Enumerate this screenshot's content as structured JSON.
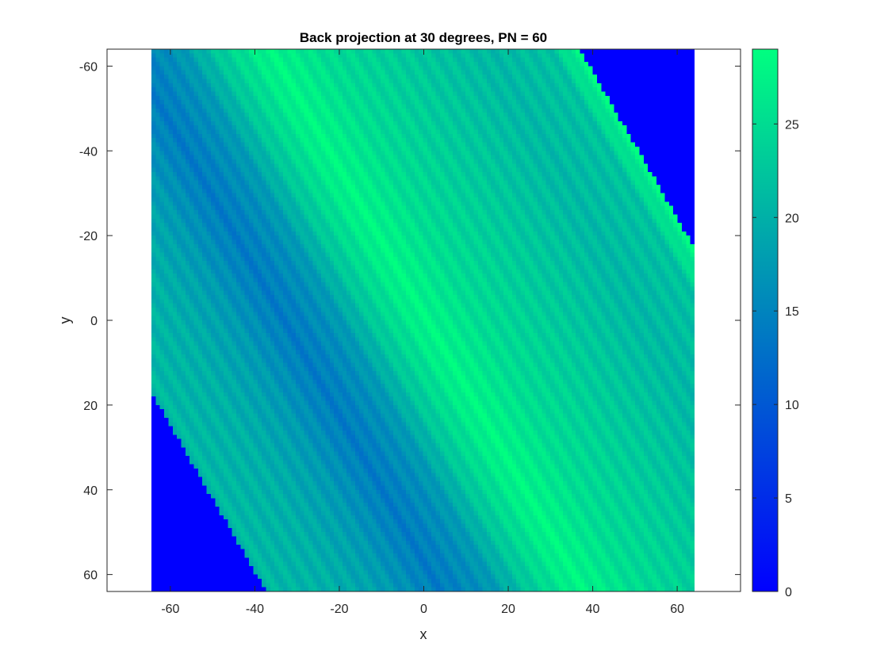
{
  "chart_data": {
    "type": "heatmap",
    "title": "Back projection at 30 degrees, PN = 60",
    "xlabel": "x",
    "ylabel": "y",
    "xlim": [
      -75,
      75
    ],
    "ylim": [
      -64,
      64
    ],
    "y_direction": "reversed",
    "grid": false,
    "image_extent": {
      "x": [
        -64,
        64
      ],
      "y": [
        -64,
        64
      ]
    },
    "projection_angle_degrees": 30,
    "pixel_value_outside_band": 0,
    "band_profile_along_perpendicular": [
      {
        "s": -64,
        "value": 0
      },
      {
        "s": -63,
        "value": 21
      },
      {
        "s": -50,
        "value": 20
      },
      {
        "s": -40,
        "value": 18
      },
      {
        "s": -28,
        "value": 14
      },
      {
        "s": -18,
        "value": 17
      },
      {
        "s": -10,
        "value": 23
      },
      {
        "s": 0,
        "value": 28
      },
      {
        "s": 12,
        "value": 25
      },
      {
        "s": 28,
        "value": 23
      },
      {
        "s": 45,
        "value": 21
      },
      {
        "s": 58,
        "value": 22
      },
      {
        "s": 63,
        "value": 28
      },
      {
        "s": 64,
        "value": 0
      }
    ],
    "x_ticks": [
      -60,
      -40,
      -20,
      0,
      20,
      40,
      60
    ],
    "x_tick_labels": [
      "-60",
      "-40",
      "-20",
      "0",
      "20",
      "40",
      "60"
    ],
    "y_ticks": [
      -60,
      -40,
      -20,
      0,
      20,
      40,
      60
    ],
    "y_tick_labels": [
      "-60",
      "-40",
      "-20",
      "0",
      "20",
      "40",
      "60"
    ],
    "colorbar": {
      "location": "right",
      "range": [
        0,
        29
      ],
      "ticks": [
        0,
        5,
        10,
        15,
        20,
        25
      ],
      "tick_labels": [
        "0",
        "5",
        "10",
        "15",
        "20",
        "25"
      ],
      "colormap": "winter",
      "color_low": "#0000ff",
      "color_high": "#00ff80"
    }
  }
}
